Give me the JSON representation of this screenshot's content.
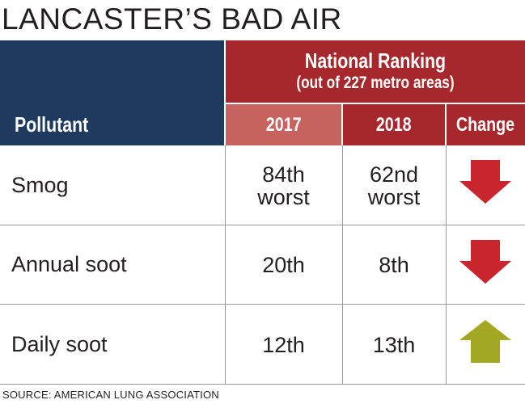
{
  "title": "LANCASTER’S BAD AIR",
  "header": {
    "pollutant_label": "Pollutant",
    "ranking_title": "National Ranking",
    "ranking_subtitle": "(out of 227 metro areas)",
    "col_2017": "2017",
    "col_2018": "2018",
    "col_change": "Change"
  },
  "rows": [
    {
      "pollutant": "Smog",
      "r2017_line1": "84th",
      "r2017_line2": "worst",
      "r2018_line1": "62nd",
      "r2018_line2": "worst",
      "change": "down"
    },
    {
      "pollutant": "Annual soot",
      "r2017_line1": "20th",
      "r2017_line2": "",
      "r2018_line1": "8th",
      "r2018_line2": "",
      "change": "down"
    },
    {
      "pollutant": "Daily soot",
      "r2017_line1": "12th",
      "r2017_line2": "",
      "r2018_line1": "13th",
      "r2018_line2": "",
      "change": "up"
    }
  ],
  "source": "SOURCE:  AMERICAN LUNG ASSOCIATION",
  "colors": {
    "navy": "#1e3a5f",
    "red": "#a7282c",
    "light_red": "#c6635f",
    "arrow_down": "#c8252d",
    "arrow_up": "#a2a824"
  },
  "chart_data": {
    "type": "table",
    "title": "LANCASTER’S BAD AIR",
    "columns": [
      "Pollutant",
      "2017",
      "2018",
      "Change"
    ],
    "rows": [
      [
        "Smog",
        "84th worst",
        "62nd worst",
        "down"
      ],
      [
        "Annual soot",
        "20th",
        "8th",
        "down"
      ],
      [
        "Daily soot",
        "12th",
        "13th",
        "up"
      ]
    ]
  }
}
